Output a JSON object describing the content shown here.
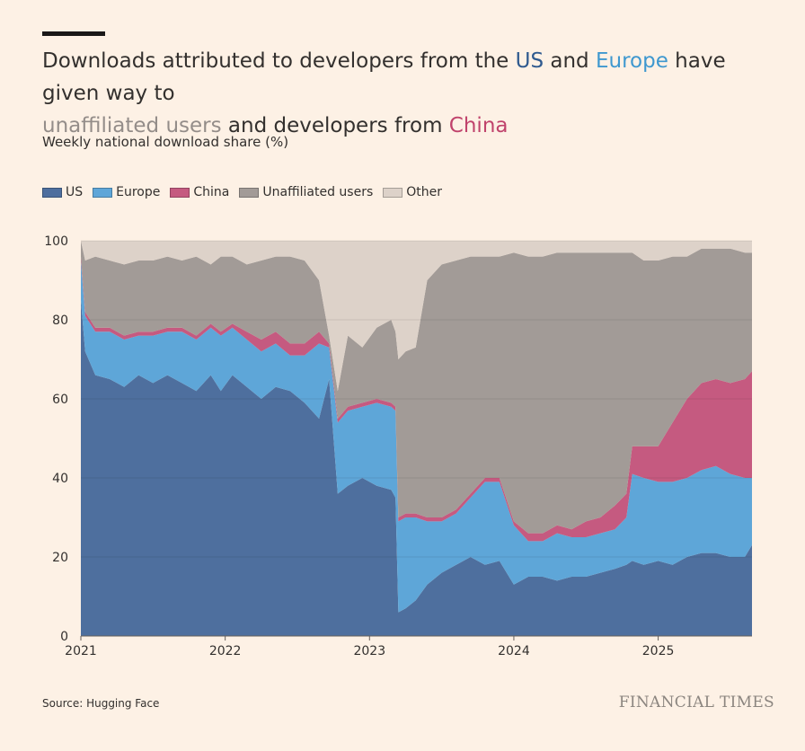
{
  "title": {
    "p1": "Downloads attributed to developers from the ",
    "us": "US",
    "p2": " and ",
    "europe": "Europe",
    "p3": " have given way to ",
    "unaffiliated": "unaffiliated users",
    "p4": " and developers from ",
    "china": "China"
  },
  "subtitle": "Weekly national download share (%)",
  "source": "Source: Hugging Face",
  "brand": "FINANCIAL TIMES",
  "colors": {
    "US": "#4e6f9e",
    "Europe": "#5ea6d8",
    "China": "#c55a80",
    "Unaffiliated users": "#a29b97",
    "Other": "#ddd2c9",
    "grid": "#d8cfc7"
  },
  "chart_data": {
    "type": "area",
    "stacked": true,
    "ylim": [
      0,
      100
    ],
    "xlim": [
      2021.0,
      2025.65
    ],
    "yticks": [
      "0",
      "20",
      "40",
      "60",
      "80",
      "100"
    ],
    "xticks": [
      "2021",
      "2022",
      "2023",
      "2024",
      "2025"
    ],
    "grid": true,
    "legend_position": "top-left",
    "x": [
      2021.0,
      2021.03,
      2021.1,
      2021.2,
      2021.3,
      2021.4,
      2021.5,
      2021.6,
      2021.7,
      2021.8,
      2021.9,
      2021.97,
      2022.05,
      2022.15,
      2022.25,
      2022.35,
      2022.45,
      2022.55,
      2022.65,
      2022.72,
      2022.78,
      2022.85,
      2022.95,
      2023.05,
      2023.15,
      2023.18,
      2023.2,
      2023.25,
      2023.32,
      2023.4,
      2023.5,
      2023.6,
      2023.7,
      2023.8,
      2023.9,
      2024.0,
      2024.1,
      2024.2,
      2024.3,
      2024.4,
      2024.5,
      2024.6,
      2024.7,
      2024.78,
      2024.82,
      2024.9,
      2025.0,
      2025.1,
      2025.2,
      2025.3,
      2025.4,
      2025.5,
      2025.6,
      2025.65
    ],
    "series": [
      {
        "name": "US",
        "values": [
          85,
          72,
          66,
          65,
          63,
          66,
          64,
          66,
          64,
          62,
          66,
          62,
          66,
          63,
          60,
          63,
          62,
          59,
          55,
          65,
          36,
          38,
          40,
          38,
          37,
          35,
          6,
          7,
          9,
          13,
          16,
          18,
          20,
          18,
          19,
          13,
          15,
          15,
          14,
          15,
          15,
          16,
          17,
          18,
          19,
          18,
          19,
          18,
          20,
          21,
          21,
          20,
          20,
          23
        ]
      },
      {
        "name": "Europe",
        "values": [
          10,
          9,
          11,
          12,
          12,
          10,
          12,
          11,
          13,
          13,
          12,
          14,
          12,
          12,
          12,
          11,
          9,
          12,
          19,
          8,
          18,
          19,
          18,
          21,
          21,
          22,
          23,
          23,
          21,
          16,
          13,
          13,
          15,
          21,
          20,
          15,
          9,
          9,
          12,
          10,
          10,
          10,
          10,
          12,
          22,
          22,
          20,
          21,
          20,
          21,
          22,
          21,
          20,
          17
        ]
      },
      {
        "name": "China",
        "values": [
          1,
          1,
          1,
          1,
          1,
          1,
          1,
          1,
          1,
          1,
          1,
          1,
          1,
          2,
          3,
          3,
          3,
          3,
          3,
          1,
          1,
          1,
          1,
          1,
          1,
          1,
          1,
          1,
          1,
          1,
          1,
          1,
          1,
          1,
          1,
          1,
          2,
          2,
          2,
          2,
          4,
          4,
          6,
          6,
          7,
          8,
          9,
          15,
          20,
          22,
          22,
          23,
          25,
          27
        ]
      },
      {
        "name": "Unaffiliated users",
        "values": [
          4,
          13,
          18,
          17,
          18,
          18,
          18,
          18,
          17,
          20,
          15,
          19,
          17,
          17,
          20,
          19,
          22,
          21,
          13,
          2,
          7,
          18,
          14,
          18,
          21,
          19,
          40,
          41,
          42,
          60,
          64,
          63,
          60,
          56,
          56,
          68,
          70,
          70,
          69,
          70,
          68,
          67,
          64,
          61,
          49,
          47,
          47,
          42,
          36,
          34,
          33,
          34,
          32,
          30
        ]
      },
      {
        "name": "Other",
        "values": [
          0,
          5,
          4,
          5,
          6,
          5,
          5,
          4,
          5,
          4,
          6,
          4,
          4,
          6,
          5,
          4,
          4,
          5,
          10,
          24,
          38,
          24,
          27,
          22,
          20,
          23,
          30,
          28,
          27,
          10,
          6,
          5,
          4,
          4,
          4,
          3,
          4,
          4,
          3,
          3,
          3,
          3,
          3,
          3,
          3,
          5,
          5,
          4,
          4,
          2,
          2,
          2,
          3,
          3
        ]
      }
    ]
  }
}
